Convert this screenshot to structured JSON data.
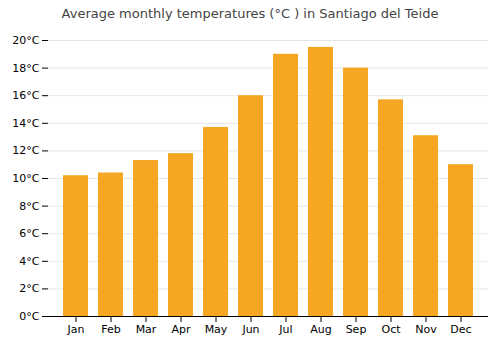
{
  "chart_data": {
    "type": "bar",
    "title": "Average monthly temperatures (°C ) in Santiago del Teide",
    "categories": [
      "Jan",
      "Feb",
      "Mar",
      "Apr",
      "May",
      "Jun",
      "Jul",
      "Aug",
      "Sep",
      "Oct",
      "Nov",
      "Dec"
    ],
    "values": [
      10.2,
      10.4,
      11.3,
      11.8,
      13.7,
      16.0,
      19.0,
      19.5,
      18.0,
      15.7,
      13.1,
      11.0
    ],
    "color": "#F5A623",
    "ylim": [
      0,
      20
    ],
    "yticks": [
      {
        "value": 0,
        "label": "0°C"
      },
      {
        "value": 2,
        "label": "2°C"
      },
      {
        "value": 4,
        "label": "4°C"
      },
      {
        "value": 6,
        "label": "6°C"
      },
      {
        "value": 8,
        "label": "8°C"
      },
      {
        "value": 10,
        "label": "10°C"
      },
      {
        "value": 12,
        "label": "12°C"
      },
      {
        "value": 14,
        "label": "14°C"
      },
      {
        "value": 16,
        "label": "16°C"
      },
      {
        "value": 18,
        "label": "18°C"
      },
      {
        "value": 20,
        "label": "20°C"
      }
    ],
    "grid": true
  }
}
